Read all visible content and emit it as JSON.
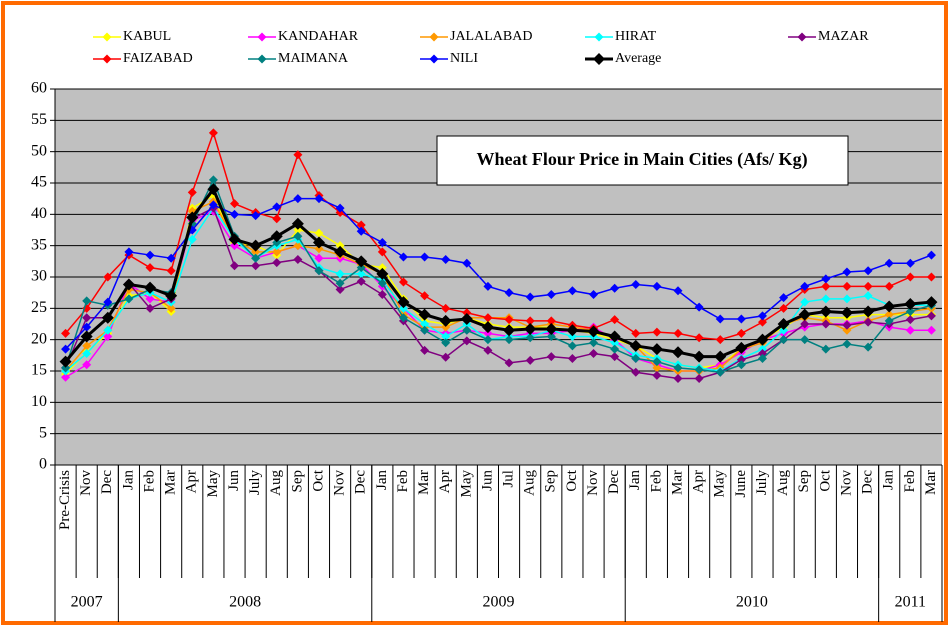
{
  "chart_data": {
    "type": "line",
    "title": "Wheat Flour Price in Main Cities (Afs/ Kg)",
    "categories": [
      "Pre-Crisis",
      "Nov",
      "Dec",
      "Jan",
      "Feb",
      "Mar",
      "Apr",
      "May",
      "Jun",
      "July",
      "Aug",
      "Sep",
      "Oct",
      "Nov",
      "Dec",
      "Jan",
      "Feb",
      "Mar",
      "Apr",
      "May",
      "Jun",
      "Jul",
      "Aug",
      "Sep",
      "Oct",
      "Nov",
      "Dec",
      "Jan",
      "Feb",
      "Mar",
      "Apr",
      "May",
      "June",
      "July",
      "Aug",
      "Sep",
      "Oct",
      "Nov",
      "Dec",
      "Jan",
      "Feb",
      "Mar"
    ],
    "year_groups": [
      {
        "label": "2007",
        "span": 3
      },
      {
        "label": "2008",
        "span": 12
      },
      {
        "label": "2009",
        "span": 12
      },
      {
        "label": "2010",
        "span": 12
      },
      {
        "label": "2011",
        "span": 3
      }
    ],
    "ylim": [
      0,
      60
    ],
    "yticks": [
      0,
      5,
      10,
      15,
      20,
      25,
      30,
      35,
      40,
      45,
      50,
      55,
      60
    ],
    "grid": true,
    "series": [
      {
        "name": "KABUL",
        "color": "#ffff00",
        "values": [
          14.5,
          18,
          21,
          27,
          27.5,
          24.5,
          41,
          43,
          35.5,
          35,
          33.5,
          37.5,
          37,
          35,
          32,
          31.5,
          26.5,
          23,
          22.5,
          23.5,
          22.5,
          22,
          22,
          22,
          21.5,
          21,
          20,
          19,
          17,
          16,
          15.5,
          16,
          18.5,
          20,
          22,
          24,
          23.5,
          23.5,
          24,
          24,
          24,
          24
        ]
      },
      {
        "name": "KANDAHAR",
        "color": "#ff00ff",
        "values": [
          14,
          16,
          20.5,
          29,
          26.5,
          26,
          39,
          40.5,
          35,
          33,
          34,
          35,
          33,
          33,
          32,
          28.5,
          25,
          21.5,
          21,
          21.5,
          21,
          20.5,
          21,
          21,
          21.5,
          22,
          20,
          17,
          16,
          15,
          15,
          16,
          18,
          20,
          21,
          22,
          22.5,
          22.5,
          23,
          22,
          21.5,
          21.5
        ]
      },
      {
        "name": "JALALABAD",
        "color": "#ff9900",
        "values": [
          15,
          19,
          21.5,
          28,
          27.5,
          25,
          40.5,
          42,
          36,
          34,
          34,
          35,
          34.5,
          33.5,
          32,
          30.5,
          24,
          22,
          22,
          23.5,
          23.5,
          23.5,
          22,
          22.5,
          22,
          21.5,
          20.5,
          19,
          15.5,
          15,
          15,
          15.5,
          18.5,
          19.5,
          22.5,
          23.5,
          23,
          21.5,
          23,
          24,
          24.5,
          25
        ]
      },
      {
        "name": "HIRAT",
        "color": "#00ffff",
        "values": [
          15,
          17.8,
          21.5,
          26.5,
          27.5,
          26,
          36,
          41,
          36,
          33,
          35,
          36,
          31.5,
          30.5,
          30.5,
          29.5,
          25,
          22.5,
          20.5,
          22.5,
          20,
          20.5,
          20.5,
          21.5,
          20.5,
          20.5,
          19.5,
          17.5,
          17,
          16,
          15.5,
          15,
          17,
          18.5,
          21.5,
          26,
          26.5,
          26.5,
          27,
          25.5,
          25.5,
          25.5
        ]
      },
      {
        "name": "MAZAR",
        "color": "#800080",
        "values": [
          15.5,
          23.5,
          23.5,
          29,
          25,
          26.5,
          39.3,
          41,
          31.8,
          31.8,
          32.3,
          32.8,
          31,
          28,
          29.3,
          27.2,
          23,
          18.3,
          17.2,
          19.8,
          18.3,
          16.3,
          16.7,
          17.3,
          17,
          17.8,
          17.3,
          14.8,
          14.3,
          13.8,
          13.8,
          14.8,
          16.8,
          17.8,
          20,
          22.5,
          22.5,
          22.3,
          22.8,
          22.5,
          23.2,
          23.8
        ]
      },
      {
        "name": "FAIZABAD",
        "color": "#ff0000",
        "values": [
          21,
          25,
          30,
          33.5,
          31.5,
          31,
          43.5,
          53,
          41.7,
          40.3,
          39.3,
          49.5,
          43,
          40.3,
          38.3,
          34,
          29.2,
          27,
          25,
          24.3,
          23.5,
          23.2,
          23,
          23,
          22.3,
          21.8,
          23.2,
          21,
          21.2,
          21,
          20.3,
          20,
          21,
          22.8,
          25,
          28,
          28.5,
          28.5,
          28.5,
          28.5,
          30,
          30
        ]
      },
      {
        "name": "MAIMANA",
        "color": "#008080",
        "values": [
          15.5,
          26.2,
          25.5,
          26.5,
          28,
          27.5,
          38.5,
          45.5,
          36.5,
          33,
          35.5,
          36.5,
          31,
          29,
          31.5,
          29,
          23.5,
          21.5,
          19.5,
          21.5,
          20,
          20,
          20.3,
          20.5,
          19,
          19.5,
          18.5,
          17,
          16.5,
          15.5,
          15.2,
          14.8,
          16,
          17,
          20,
          20,
          18.5,
          19.3,
          18.8,
          23,
          24.5,
          25.5
        ]
      },
      {
        "name": "NILI",
        "color": "#0000ff",
        "values": [
          18.5,
          22,
          26,
          34,
          33.5,
          33,
          37.5,
          41.5,
          40,
          39.8,
          41.2,
          42.5,
          42.5,
          41,
          37.3,
          35.5,
          33.2,
          33.2,
          32.8,
          32.2,
          28.5,
          27.5,
          26.8,
          27.2,
          27.8,
          27.2,
          28.2,
          28.8,
          28.5,
          27.8,
          25.2,
          23.3,
          23.3,
          23.8,
          26.7,
          28.5,
          29.7,
          30.8,
          31,
          32.2,
          32.2,
          33.5
        ]
      },
      {
        "name": "Average",
        "color": "#000000",
        "values": [
          16.5,
          20.5,
          23.5,
          28.8,
          28.3,
          27,
          39.5,
          44,
          36,
          35,
          36.5,
          38.5,
          35.5,
          34,
          32.5,
          30.5,
          26,
          24,
          23,
          23.3,
          22,
          21.5,
          21.7,
          21.7,
          21.5,
          21.3,
          20.5,
          19,
          18.5,
          18,
          17.3,
          17.3,
          18.7,
          20,
          22.5,
          24,
          24.5,
          24.3,
          24.5,
          25.3,
          25.7,
          26
        ]
      }
    ]
  }
}
